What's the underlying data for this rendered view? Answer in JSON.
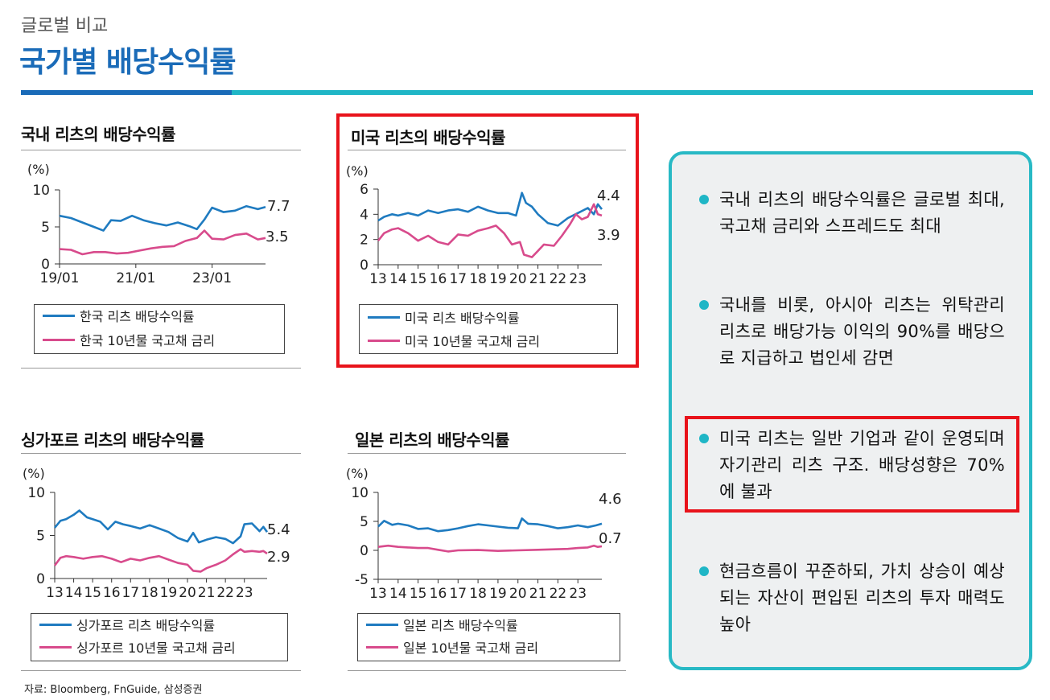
{
  "header": {
    "kicker": "글로벌 비교",
    "title": "국가별 배당수익률"
  },
  "panels": [
    {
      "title": "국내 리츠의 배당수익률",
      "unit": "(%)",
      "legend": [
        "한국 리츠 배당수익률",
        "한국 10년물 국고채 금리"
      ],
      "end_labels": [
        "7.7",
        "3.5"
      ],
      "highlighted": false
    },
    {
      "title": "미국 리츠의 배당수익률",
      "unit": "(%)",
      "legend": [
        "미국 리츠 배당수익률",
        "미국 10년물 국고채 금리"
      ],
      "end_labels": [
        "4.4",
        "3.9"
      ],
      "highlighted": true
    },
    {
      "title": "싱가포르 리츠의 배당수익률",
      "unit": "(%)",
      "legend": [
        "싱가포르 리츠 배당수익률",
        "싱가포르 10년물 국고채 금리"
      ],
      "end_labels": [
        "5.4",
        "2.9"
      ],
      "highlighted": false
    },
    {
      "title": "일본 리츠의 배당수익률",
      "unit": "(%)",
      "legend": [
        "일본 리츠 배당수익률",
        "일본 10년물 국고채 금리"
      ],
      "end_labels": [
        "4.6",
        "0.7"
      ],
      "highlighted": false
    }
  ],
  "chart_data": [
    {
      "type": "line",
      "xaxis": {
        "type": "time",
        "start": 2019.0,
        "end": 2024.4,
        "ticks": [
          2019,
          2021,
          2023
        ],
        "tick_labels": [
          "19/01",
          "21/01",
          "23/01"
        ]
      },
      "ylim": [
        0,
        10
      ],
      "yticks": [
        0,
        5,
        10
      ],
      "series": [
        {
          "name": "한국 리츠 배당수익률",
          "color": "#1f7bc0",
          "x": [
            2019.0,
            2019.3,
            2019.6,
            2019.9,
            2020.15,
            2020.35,
            2020.6,
            2020.9,
            2021.2,
            2021.5,
            2021.8,
            2022.1,
            2022.4,
            2022.6,
            2022.8,
            2023.0,
            2023.3,
            2023.6,
            2023.9,
            2024.2,
            2024.4
          ],
          "y": [
            6.5,
            6.2,
            5.6,
            5.0,
            4.5,
            5.9,
            5.8,
            6.5,
            5.9,
            5.5,
            5.2,
            5.6,
            5.1,
            4.7,
            6.0,
            7.6,
            7.0,
            7.2,
            7.8,
            7.4,
            7.7
          ]
        },
        {
          "name": "한국 10년물 국고채 금리",
          "color": "#d84b8c",
          "x": [
            2019.0,
            2019.3,
            2019.6,
            2019.9,
            2020.2,
            2020.5,
            2020.8,
            2021.1,
            2021.4,
            2021.7,
            2022.0,
            2022.3,
            2022.6,
            2022.8,
            2023.0,
            2023.3,
            2023.6,
            2023.9,
            2024.2,
            2024.4
          ],
          "y": [
            2.0,
            1.9,
            1.3,
            1.6,
            1.6,
            1.4,
            1.5,
            1.8,
            2.1,
            2.3,
            2.4,
            3.1,
            3.5,
            4.5,
            3.4,
            3.3,
            3.9,
            4.1,
            3.3,
            3.5
          ]
        }
      ]
    },
    {
      "type": "line",
      "xaxis": {
        "type": "time",
        "start": 2013.0,
        "end": 2024.2,
        "ticks": [
          2013,
          2014,
          2015,
          2016,
          2017,
          2018,
          2019,
          2020,
          2021,
          2022,
          2023
        ],
        "tick_labels": [
          "13",
          "14",
          "15",
          "16",
          "17",
          "18",
          "19",
          "20",
          "21",
          "22",
          "23"
        ]
      },
      "ylim": [
        0,
        6
      ],
      "yticks": [
        0,
        2,
        4,
        6
      ],
      "series": [
        {
          "name": "미국 리츠 배당수익률",
          "color": "#1f7bc0",
          "x": [
            2013.0,
            2013.3,
            2013.7,
            2014.0,
            2014.5,
            2015.0,
            2015.5,
            2016.0,
            2016.5,
            2017.0,
            2017.5,
            2018.0,
            2018.5,
            2019.0,
            2019.5,
            2019.9,
            2020.2,
            2020.4,
            2020.7,
            2021.0,
            2021.5,
            2022.0,
            2022.5,
            2023.0,
            2023.5,
            2023.8,
            2024.0,
            2024.2
          ],
          "y": [
            3.5,
            3.8,
            4.0,
            3.9,
            4.1,
            3.9,
            4.3,
            4.1,
            4.3,
            4.4,
            4.2,
            4.6,
            4.3,
            4.1,
            4.1,
            3.9,
            5.7,
            4.9,
            4.6,
            4.0,
            3.3,
            3.1,
            3.7,
            4.1,
            4.5,
            4.0,
            4.8,
            4.4
          ]
        },
        {
          "name": "미국 10년물 국고채 금리",
          "color": "#d84b8c",
          "x": [
            2013.0,
            2013.3,
            2013.7,
            2014.0,
            2014.5,
            2015.0,
            2015.5,
            2016.0,
            2016.5,
            2017.0,
            2017.5,
            2018.0,
            2018.5,
            2018.9,
            2019.3,
            2019.7,
            2020.1,
            2020.3,
            2020.7,
            2021.0,
            2021.3,
            2021.8,
            2022.2,
            2022.6,
            2022.9,
            2023.2,
            2023.5,
            2023.8,
            2024.0,
            2024.2
          ],
          "y": [
            1.9,
            2.5,
            2.8,
            2.9,
            2.5,
            1.9,
            2.3,
            1.8,
            1.6,
            2.4,
            2.3,
            2.7,
            2.9,
            3.1,
            2.5,
            1.6,
            1.8,
            0.8,
            0.6,
            1.1,
            1.6,
            1.5,
            2.3,
            3.2,
            4.0,
            3.6,
            3.8,
            4.8,
            4.0,
            3.9
          ]
        }
      ]
    },
    {
      "type": "line",
      "xaxis": {
        "type": "time",
        "start": 2013.0,
        "end": 2024.2,
        "ticks": [
          2013,
          2014,
          2015,
          2016,
          2017,
          2018,
          2019,
          2020,
          2021,
          2022,
          2023
        ],
        "tick_labels": [
          "13",
          "14",
          "15",
          "16",
          "17",
          "18",
          "19",
          "20",
          "21",
          "22",
          "23"
        ]
      },
      "ylim": [
        0,
        10
      ],
      "yticks": [
        0,
        5,
        10
      ],
      "series": [
        {
          "name": "싱가포르 리츠 배당수익률",
          "color": "#1f7bc0",
          "x": [
            2013.0,
            2013.3,
            2013.6,
            2014.0,
            2014.3,
            2014.7,
            2015.0,
            2015.4,
            2015.8,
            2016.2,
            2016.6,
            2017.0,
            2017.5,
            2018.0,
            2018.5,
            2019.0,
            2019.5,
            2020.0,
            2020.3,
            2020.6,
            2021.0,
            2021.5,
            2022.0,
            2022.4,
            2022.8,
            2023.0,
            2023.4,
            2023.8,
            2024.0,
            2024.2
          ],
          "y": [
            5.9,
            6.7,
            6.9,
            7.4,
            7.9,
            7.1,
            6.9,
            6.6,
            5.7,
            6.6,
            6.3,
            6.1,
            5.8,
            6.2,
            5.8,
            5.4,
            4.7,
            4.3,
            5.3,
            4.2,
            4.5,
            4.8,
            4.6,
            4.1,
            4.9,
            6.3,
            6.4,
            5.5,
            6.0,
            5.4
          ]
        },
        {
          "name": "싱가포르 10년물 국고채 금리",
          "color": "#d84b8c",
          "x": [
            2013.0,
            2013.3,
            2013.6,
            2014.0,
            2014.5,
            2015.0,
            2015.5,
            2016.0,
            2016.5,
            2017.0,
            2017.5,
            2018.0,
            2018.5,
            2019.0,
            2019.5,
            2020.0,
            2020.3,
            2020.7,
            2021.0,
            2021.5,
            2022.0,
            2022.4,
            2022.8,
            2023.0,
            2023.4,
            2023.8,
            2024.0,
            2024.2
          ],
          "y": [
            1.5,
            2.4,
            2.6,
            2.5,
            2.3,
            2.5,
            2.6,
            2.3,
            1.9,
            2.3,
            2.1,
            2.4,
            2.6,
            2.2,
            1.8,
            1.6,
            0.9,
            0.8,
            1.2,
            1.6,
            2.1,
            2.8,
            3.4,
            3.1,
            3.2,
            3.1,
            3.2,
            2.9
          ]
        }
      ]
    },
    {
      "type": "line",
      "xaxis": {
        "type": "time",
        "start": 2013.0,
        "end": 2024.2,
        "ticks": [
          2013,
          2014,
          2015,
          2016,
          2017,
          2018,
          2019,
          2020,
          2021,
          2022,
          2023
        ],
        "tick_labels": [
          "13",
          "14",
          "15",
          "16",
          "17",
          "18",
          "19",
          "20",
          "21",
          "22",
          "23"
        ]
      },
      "ylim": [
        -5,
        10
      ],
      "yticks": [
        -5,
        0,
        5,
        10
      ],
      "series": [
        {
          "name": "일본 리츠 배당수익률",
          "color": "#1f7bc0",
          "x": [
            2013.0,
            2013.3,
            2013.7,
            2014.0,
            2014.5,
            2015.0,
            2015.5,
            2016.0,
            2016.5,
            2017.0,
            2017.5,
            2018.0,
            2018.5,
            2019.0,
            2019.5,
            2020.0,
            2020.2,
            2020.5,
            2021.0,
            2021.5,
            2022.0,
            2022.5,
            2023.0,
            2023.5,
            2023.9,
            2024.2
          ],
          "y": [
            4.1,
            5.1,
            4.4,
            4.6,
            4.3,
            3.7,
            3.8,
            3.3,
            3.5,
            3.8,
            4.2,
            4.5,
            4.3,
            4.1,
            3.9,
            3.8,
            5.5,
            4.6,
            4.5,
            4.2,
            3.8,
            4.0,
            4.3,
            4.0,
            4.3,
            4.6
          ]
        },
        {
          "name": "일본 10년물 국고채 금리",
          "color": "#d84b8c",
          "x": [
            2013.0,
            2013.5,
            2014.0,
            2014.5,
            2015.0,
            2015.5,
            2016.0,
            2016.5,
            2017.0,
            2018.0,
            2019.0,
            2020.0,
            2021.0,
            2022.0,
            2022.5,
            2023.0,
            2023.5,
            2023.8,
            2024.0,
            2024.2
          ],
          "y": [
            0.6,
            0.8,
            0.6,
            0.5,
            0.4,
            0.4,
            0.1,
            -0.2,
            0.0,
            0.05,
            -0.1,
            0.0,
            0.1,
            0.2,
            0.25,
            0.4,
            0.5,
            0.8,
            0.6,
            0.7
          ]
        }
      ]
    }
  ],
  "side_panel": {
    "bullets": [
      "국내 리츠의 배당수익률은 글로벌 최대, 국고채 금리와 스프레드도 최대",
      "국내를 비롯, 아시아 리츠는 위탁관리 리츠로 배당가능 이익의 90%를 배당으로 지급하고 법인세 감면",
      "미국 리츠는 일반 기업과 같이 운영되며 자기관리 리츠 구조. 배당성향은 70%에 불과",
      "현금흐름이 꾸준하되, 가치 상승이 예상되는 자산이 편입된 리츠의 투자 매력도 높아"
    ],
    "highlighted_index": 2
  },
  "source": "자료: Bloomberg, FnGuide, 삼성증권",
  "colors": {
    "brand_blue": "#1a6bb8",
    "teal": "#1fb6c6",
    "series_blue": "#1f7bc0",
    "series_pink": "#d84b8c",
    "highlight_red": "#e8131b",
    "panel_bg": "#eef0f1"
  }
}
